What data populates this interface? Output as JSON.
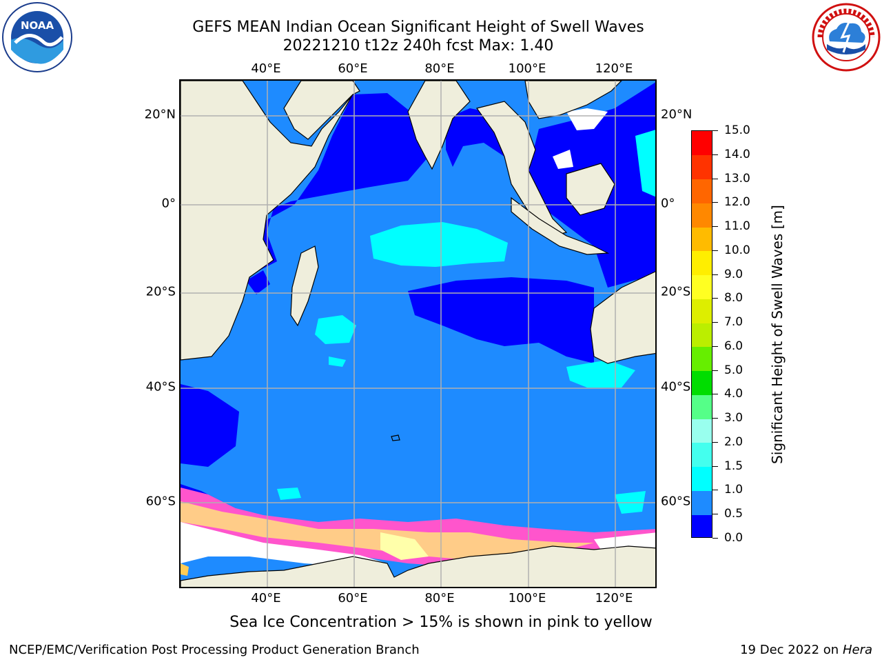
{
  "header": {
    "title_line1": "GEFS MEAN Indian Ocean Significant Height of Swell Waves",
    "title_line2": "20221210 t12z 240h fcst   Max: 1.40"
  },
  "logos": {
    "left": {
      "icon": "noaa-logo",
      "text": "NOAA"
    },
    "right": {
      "icon": "national-weather-service-logo"
    }
  },
  "map": {
    "lon_ticks": [
      "40°E",
      "60°E",
      "80°E",
      "100°E",
      "120°E"
    ],
    "lat_ticks": [
      "20°N",
      "0°",
      "20°S",
      "40°S",
      "60°S"
    ],
    "colors": {
      "land": "#efeedc",
      "ice_free_sea": "#ffffff",
      "grid": "#b0b0b0",
      "coast": "#000000"
    }
  },
  "colorbar": {
    "title": "Significant Height of Swell Waves [m]",
    "labels": [
      "0.0",
      "0.5",
      "1.0",
      "1.5",
      "2.0",
      "3.0",
      "4.0",
      "5.0",
      "6.0",
      "7.0",
      "8.0",
      "9.0",
      "10.0",
      "11.0",
      "12.0",
      "13.0",
      "14.0",
      "15.0"
    ],
    "colors": [
      "#0000ff",
      "#1e8bff",
      "#00ffff",
      "#44ffee",
      "#99ffee",
      "#55ff88",
      "#00dd00",
      "#66ee00",
      "#bbee00",
      "#ddee00",
      "#ffff22",
      "#ffee00",
      "#ffbb00",
      "#ff8800",
      "#ff6600",
      "#ff3300",
      "#ff0000"
    ]
  },
  "footer": {
    "ice_note": "Sea Ice Concentration > 15% is shown in pink to yellow",
    "credit_left": "NCEP/EMC/Verification Post Processing Product Generation Branch",
    "credit_date": "19 Dec 2022 on",
    "credit_host": "Hera"
  }
}
